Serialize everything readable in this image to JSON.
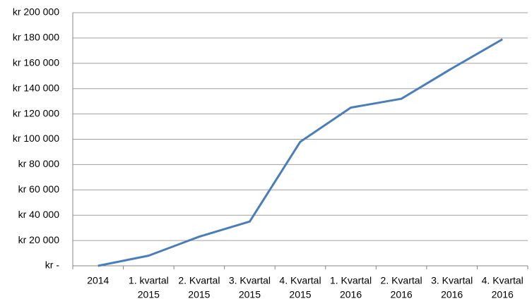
{
  "chart_data": {
    "type": "line",
    "categories": [
      [
        "2014"
      ],
      [
        "1. kvartal",
        "2015"
      ],
      [
        "2. Kvartal",
        "2015"
      ],
      [
        "3. Kvartal",
        "2015"
      ],
      [
        "4. Kvartal",
        "2015"
      ],
      [
        "1. Kvartal",
        "2016"
      ],
      [
        "2. Kvartal",
        "2016"
      ],
      [
        "3. Kvartal",
        "2016"
      ],
      [
        "4. Kvartal",
        "2016"
      ]
    ],
    "values": [
      0,
      8000,
      23000,
      35000,
      98000,
      125000,
      132000,
      156000,
      179000
    ],
    "color": "#4a7ebb",
    "ylim": [
      0,
      200000
    ],
    "yticks": [
      {
        "value": 0,
        "label": "kr -"
      },
      {
        "value": 20000,
        "label": "kr 20 000"
      },
      {
        "value": 40000,
        "label": "kr 40 000"
      },
      {
        "value": 60000,
        "label": "kr 60 000"
      },
      {
        "value": 80000,
        "label": "kr 80 000"
      },
      {
        "value": 100000,
        "label": "kr 100 000"
      },
      {
        "value": 120000,
        "label": "kr 120 000"
      },
      {
        "value": 140000,
        "label": "kr 140 000"
      },
      {
        "value": 160000,
        "label": "kr 160 000"
      },
      {
        "value": 180000,
        "label": "kr 180 000"
      },
      {
        "value": 200000,
        "label": "kr 200 000"
      }
    ],
    "grid": true
  }
}
